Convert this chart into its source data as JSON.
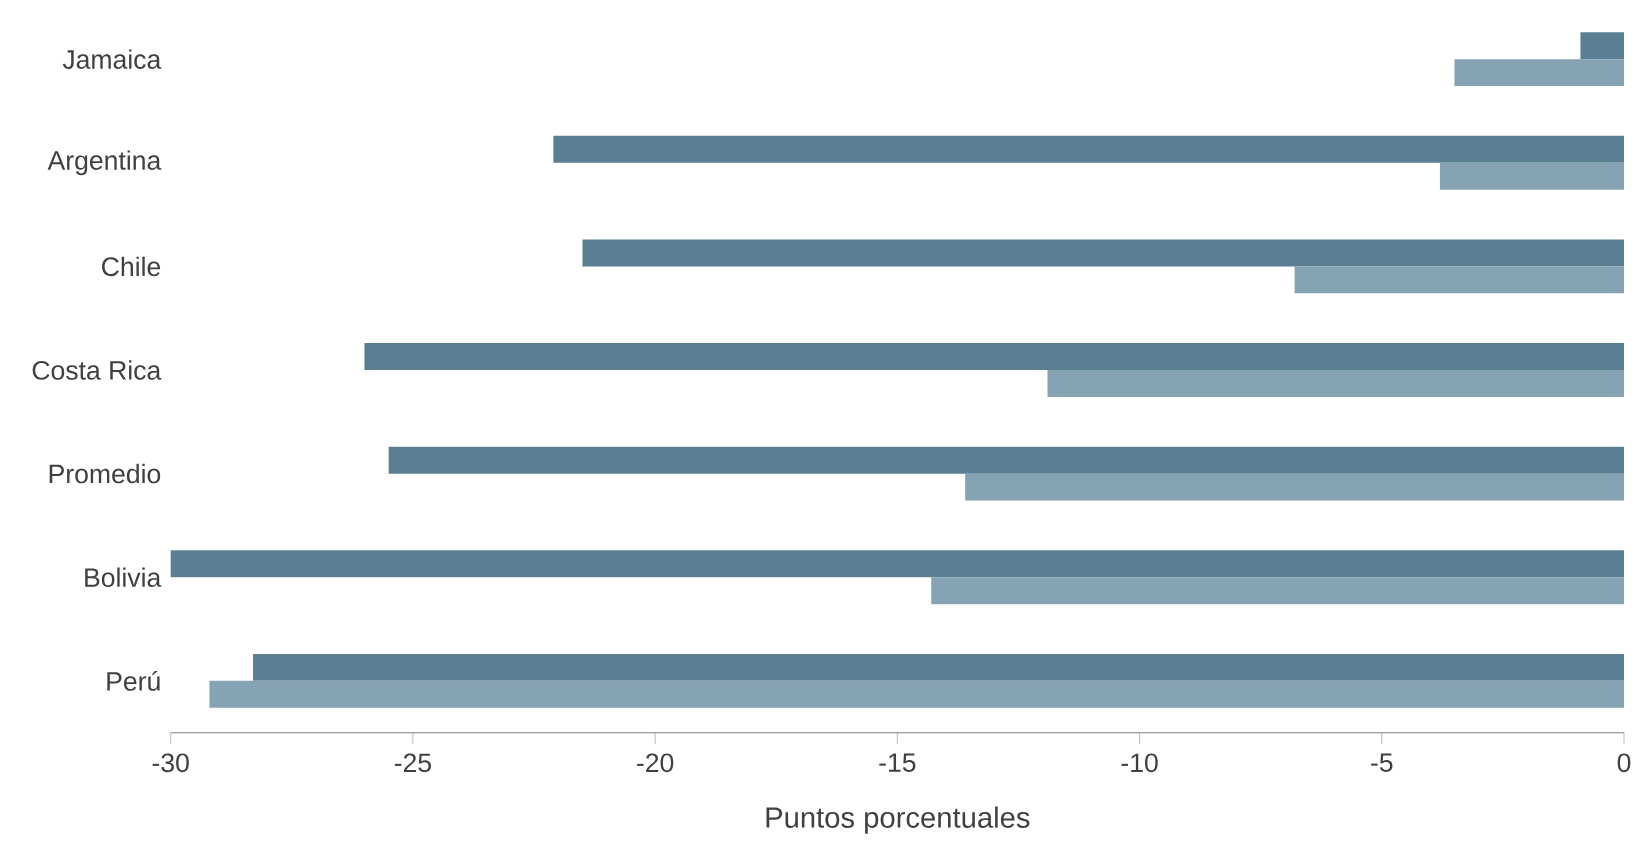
{
  "chart_data": {
    "type": "bar",
    "orientation": "horizontal",
    "xlabel": "Puntos porcentuales",
    "categories": [
      "Jamaica",
      "Argentina",
      "Chile",
      "Costa Rica",
      "Promedio",
      "Bolivia",
      "Perú"
    ],
    "series": [
      {
        "color": "#5a7f93",
        "values": [
          -0.9,
          -22.1,
          -21.5,
          -26.0,
          -25.5,
          -30.0,
          -28.3
        ]
      },
      {
        "color": "#86a3b3",
        "values": [
          -3.5,
          -3.8,
          -6.8,
          -11.9,
          -13.6,
          -14.3,
          -29.2
        ]
      }
    ],
    "xlim": [
      -30,
      0
    ],
    "xticks": [
      -30,
      -25,
      -20,
      -15,
      -10,
      -5,
      0
    ],
    "grid": false
  }
}
